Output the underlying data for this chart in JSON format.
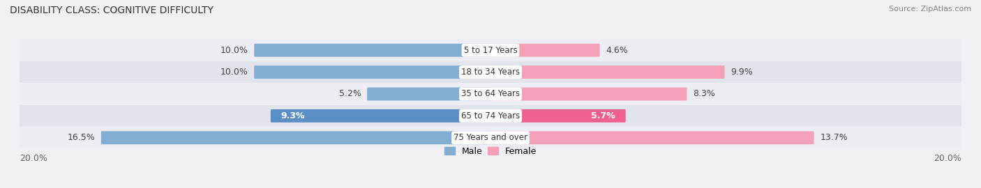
{
  "title": "DISABILITY CLASS: COGNITIVE DIFFICULTY",
  "source": "Source: ZipAtlas.com",
  "categories": [
    "5 to 17 Years",
    "18 to 34 Years",
    "35 to 64 Years",
    "65 to 74 Years",
    "75 Years and over"
  ],
  "male_values": [
    10.0,
    10.0,
    5.2,
    9.3,
    16.5
  ],
  "female_values": [
    4.6,
    9.9,
    8.3,
    5.7,
    13.7
  ],
  "male_color": "#82aed4",
  "female_color": "#f4a0b8",
  "highlight_male_color": "#5b8ec4",
  "highlight_female_color": "#ee6090",
  "highlight_row": 4,
  "xlim": 20.0,
  "row_bg_light": "#eceef3",
  "row_bg_dark": "#e2e4eb",
  "bar_height": 0.52,
  "label_fontsize": 9.0,
  "title_fontsize": 10,
  "category_fontsize": 8.5,
  "legend_fontsize": 9,
  "fig_bg": "#f0f0f5"
}
